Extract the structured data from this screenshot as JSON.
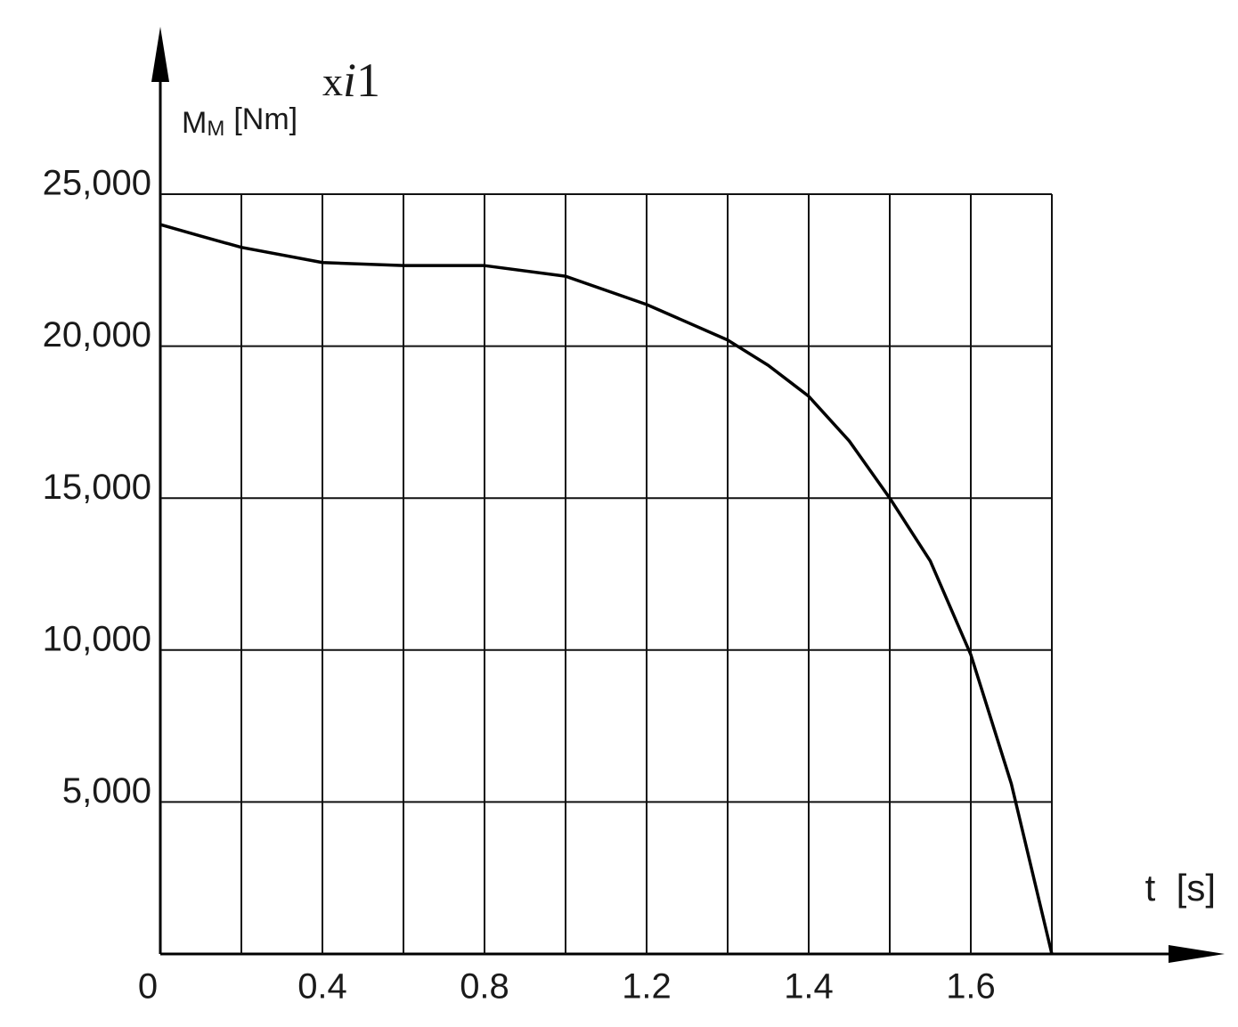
{
  "chart_data": {
    "type": "line",
    "y_label": {
      "symbol": "M",
      "subscript": "M",
      "unit": "[Nm]"
    },
    "annotation": [
      "x",
      "i",
      "1"
    ],
    "x_label": "t  [s]",
    "x": [
      0,
      0.1,
      0.2,
      0.4,
      0.6,
      0.8,
      1.0,
      1.2,
      1.3,
      1.35,
      1.4,
      1.45,
      1.5,
      1.55,
      1.6,
      1.65,
      1.7
    ],
    "series": [
      {
        "color": "#000000",
        "values": [
          24000,
          23620,
          23250,
          22750,
          22650,
          22650,
          22300,
          21370,
          20200,
          19370,
          18350,
          16880,
          15000,
          12930,
          9850,
          5600,
          0
        ]
      }
    ],
    "xlim": [
      0,
      1.7
    ],
    "xticks": [
      0,
      0.4,
      0.8,
      1.2,
      1.4,
      1.6
    ],
    "ylim": [
      0,
      25000
    ],
    "yticks": [
      {
        "value": 5000,
        "label": "5,000"
      },
      {
        "value": 10000,
        "label": "10,000"
      },
      {
        "value": 15000,
        "label": "15,000"
      },
      {
        "value": 20000,
        "label": "20,000"
      },
      {
        "value": 25000,
        "label": "25,000"
      }
    ],
    "grid": true
  }
}
